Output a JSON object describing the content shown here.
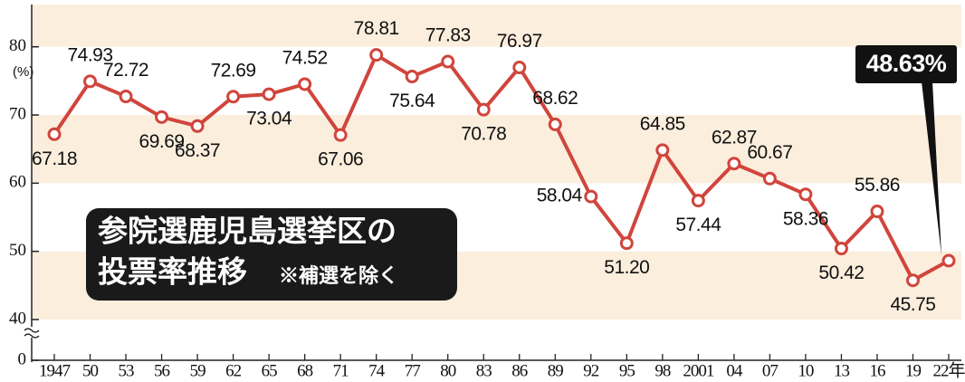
{
  "chart_data": {
    "type": "line",
    "title": "参院選鹿児島選挙区の",
    "subtitle": "投票率推移",
    "note": "※補選を除く",
    "y_unit_label": "(%)",
    "categories": [
      "1947",
      "50",
      "53",
      "56",
      "59",
      "62",
      "65",
      "68",
      "71",
      "74",
      "77",
      "80",
      "83",
      "86",
      "89",
      "92",
      "95",
      "98",
      "2001",
      "04",
      "07",
      "10",
      "13",
      "16",
      "19",
      "22年"
    ],
    "series": [
      {
        "name": "投票率",
        "color": "#d0453c",
        "values": [
          67.18,
          74.93,
          72.72,
          69.69,
          68.37,
          72.69,
          73.04,
          74.52,
          67.06,
          78.81,
          75.64,
          77.83,
          70.78,
          76.97,
          68.62,
          58.04,
          51.2,
          64.85,
          57.44,
          62.87,
          60.67,
          58.36,
          50.42,
          55.86,
          45.75,
          48.63
        ],
        "value_labels": [
          "67.18",
          "74.93",
          "72.72",
          "69.69",
          "68.37",
          "72.69",
          "73.04",
          "74.52",
          "67.06",
          "78.81",
          "75.64",
          "77.83",
          "70.78",
          "76.97",
          "68.62",
          "58.04",
          "51.20",
          "64.85",
          "57.44",
          "62.87",
          "60.67",
          "58.36",
          "50.42",
          "55.86",
          "45.75",
          "48.63%"
        ]
      }
    ],
    "ylim": [
      40,
      86.2
    ],
    "yticks": [
      0,
      40,
      50,
      60,
      70,
      80
    ],
    "axis_break": true,
    "grid": false
  }
}
